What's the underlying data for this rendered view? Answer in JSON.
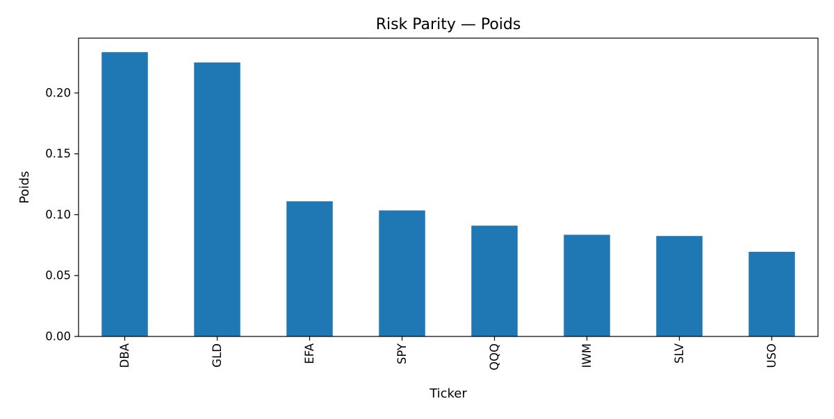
{
  "chart_data": {
    "type": "bar",
    "title": "Risk Parity — Poids",
    "xlabel": "Ticker",
    "ylabel": "Poids",
    "categories": [
      "DBA",
      "GLD",
      "EFA",
      "SPY",
      "QQQ",
      "IWM",
      "SLV",
      "USO"
    ],
    "values": [
      0.2335,
      0.225,
      0.111,
      0.1035,
      0.091,
      0.0835,
      0.0825,
      0.0695
    ],
    "ylim": [
      0,
      0.245
    ],
    "yticks": [
      0.0,
      0.05,
      0.1,
      0.15,
      0.2
    ],
    "ytick_labels": [
      "0.00",
      "0.05",
      "0.10",
      "0.15",
      "0.20"
    ],
    "grid": false,
    "legend": "none",
    "bar_color": "#1f77b4"
  }
}
